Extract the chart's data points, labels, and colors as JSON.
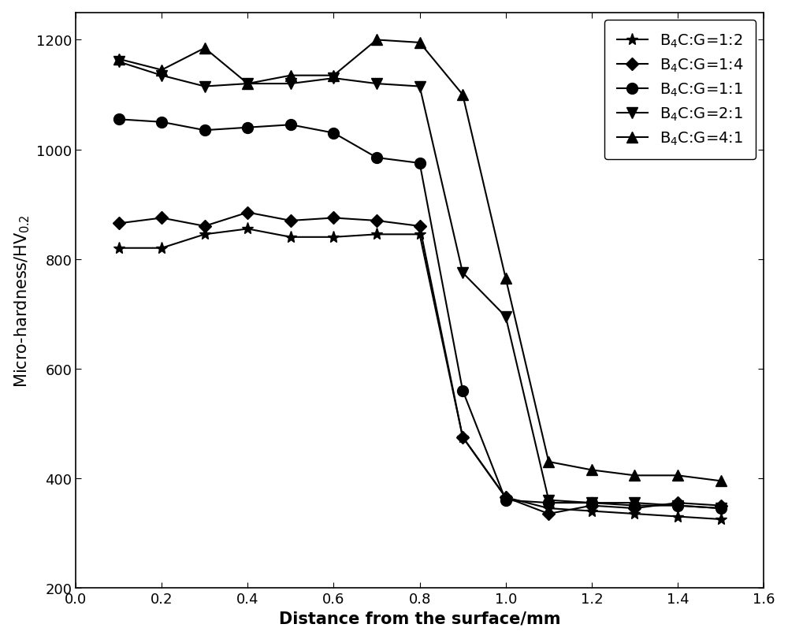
{
  "series": [
    {
      "label": "B$_4$C:G=1:2",
      "marker": "*",
      "markersize": 11,
      "x": [
        0.1,
        0.2,
        0.3,
        0.4,
        0.5,
        0.6,
        0.7,
        0.8,
        0.9,
        1.0,
        1.1,
        1.2,
        1.3,
        1.4,
        1.5
      ],
      "y": [
        820,
        820,
        845,
        855,
        840,
        840,
        845,
        845,
        475,
        365,
        345,
        340,
        335,
        330,
        325
      ]
    },
    {
      "label": "B$_4$C:G=1:4",
      "marker": "D",
      "markersize": 8,
      "x": [
        0.1,
        0.2,
        0.3,
        0.4,
        0.5,
        0.6,
        0.7,
        0.8,
        0.9,
        1.0,
        1.1,
        1.2,
        1.3,
        1.4,
        1.5
      ],
      "y": [
        865,
        875,
        860,
        885,
        870,
        875,
        870,
        860,
        475,
        365,
        335,
        350,
        345,
        355,
        350
      ]
    },
    {
      "label": "B$_4$C:G=1:1",
      "marker": "o",
      "markersize": 10,
      "x": [
        0.1,
        0.2,
        0.3,
        0.4,
        0.5,
        0.6,
        0.7,
        0.8,
        0.9,
        1.0,
        1.1,
        1.2,
        1.3,
        1.4,
        1.5
      ],
      "y": [
        1055,
        1050,
        1035,
        1040,
        1045,
        1030,
        985,
        975,
        560,
        360,
        355,
        355,
        350,
        350,
        345
      ]
    },
    {
      "label": "B$_4$C:G=2:1",
      "marker": "v",
      "markersize": 10,
      "x": [
        0.1,
        0.2,
        0.3,
        0.4,
        0.5,
        0.6,
        0.7,
        0.8,
        0.9,
        1.0,
        1.1,
        1.2,
        1.3,
        1.4,
        1.5
      ],
      "y": [
        1160,
        1135,
        1115,
        1120,
        1120,
        1130,
        1120,
        1115,
        775,
        695,
        360,
        355,
        355,
        350,
        345
      ]
    },
    {
      "label": "B$_4$C:G=4:1",
      "marker": "^",
      "markersize": 10,
      "x": [
        0.1,
        0.2,
        0.3,
        0.4,
        0.5,
        0.6,
        0.7,
        0.8,
        0.9,
        1.0,
        1.1,
        1.2,
        1.3,
        1.4,
        1.5
      ],
      "y": [
        1165,
        1145,
        1185,
        1120,
        1135,
        1135,
        1200,
        1195,
        1100,
        765,
        430,
        415,
        405,
        405,
        395
      ]
    }
  ],
  "xlabel": "Distance from the surface/mm",
  "ylabel": "Micro-hardness/HV$_{0.2}$",
  "xlim": [
    0.0,
    1.6
  ],
  "ylim": [
    200,
    1250
  ],
  "xticks": [
    0.0,
    0.2,
    0.4,
    0.6,
    0.8,
    1.0,
    1.2,
    1.4,
    1.6
  ],
  "yticks": [
    200,
    400,
    600,
    800,
    1000,
    1200
  ],
  "color": "#000000",
  "linewidth": 1.5,
  "background_color": "#ffffff",
  "legend_loc": "upper right",
  "font_size": 14,
  "label_font_size": 15,
  "tick_font_size": 13
}
